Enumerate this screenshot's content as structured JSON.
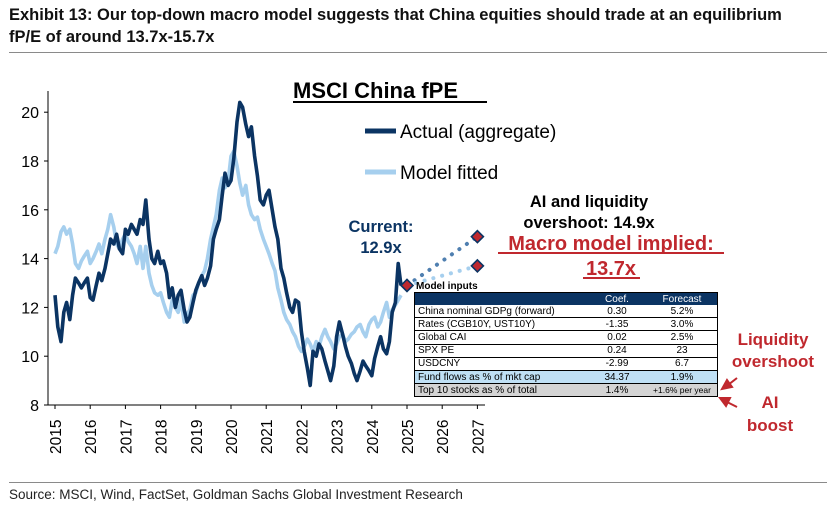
{
  "header": {
    "title": "Exhibit 13: Our top-down macro model suggests that China equities should trade at an equilibrium fP/E of around 13.7x-15.7x",
    "source": "Source: MSCI, Wind, FactSet, Goldman Sachs Global Investment Research"
  },
  "colors": {
    "actual": "#0b3463",
    "model": "#a6cfee",
    "red": "#c0282e",
    "navy": "#0b3463"
  },
  "chart_data": {
    "type": "line",
    "title": "MSCI China fPE",
    "xlabel": "",
    "ylabel": "",
    "ylim": [
      8,
      21
    ],
    "xlim": [
      2015,
      2027.5
    ],
    "yticks": [
      "8",
      "10",
      "12",
      "14",
      "16",
      "18",
      "20"
    ],
    "xticks": [
      "2015",
      "2016",
      "2017",
      "2018",
      "2019",
      "2020",
      "2021",
      "2022",
      "2023",
      "2024",
      "2025",
      "2026",
      "2027"
    ],
    "legend": [
      "Actual (aggregate)",
      "Model fitted"
    ],
    "series": [
      {
        "name": "Actual (aggregate)",
        "x": [
          2015.0,
          2015.08,
          2015.17,
          2015.25,
          2015.33,
          2015.42,
          2015.5,
          2015.58,
          2015.67,
          2015.75,
          2015.83,
          2015.92,
          2016.0,
          2016.08,
          2016.17,
          2016.25,
          2016.33,
          2016.42,
          2016.5,
          2016.58,
          2016.67,
          2016.75,
          2016.83,
          2016.92,
          2017.0,
          2017.08,
          2017.17,
          2017.25,
          2017.33,
          2017.42,
          2017.5,
          2017.58,
          2017.67,
          2017.75,
          2017.83,
          2017.92,
          2018.0,
          2018.08,
          2018.17,
          2018.25,
          2018.33,
          2018.42,
          2018.5,
          2018.58,
          2018.67,
          2018.75,
          2018.83,
          2018.92,
          2019.0,
          2019.08,
          2019.17,
          2019.25,
          2019.33,
          2019.42,
          2019.5,
          2019.58,
          2019.67,
          2019.75,
          2019.83,
          2019.92,
          2020.0,
          2020.08,
          2020.17,
          2020.25,
          2020.33,
          2020.42,
          2020.5,
          2020.58,
          2020.67,
          2020.75,
          2020.83,
          2020.92,
          2021.0,
          2021.08,
          2021.17,
          2021.25,
          2021.33,
          2021.42,
          2021.5,
          2021.58,
          2021.67,
          2021.75,
          2021.83,
          2021.92,
          2022.0,
          2022.08,
          2022.17,
          2022.25,
          2022.33,
          2022.42,
          2022.5,
          2022.58,
          2022.67,
          2022.75,
          2022.83,
          2022.92,
          2023.0,
          2023.08,
          2023.17,
          2023.25,
          2023.33,
          2023.42,
          2023.5,
          2023.58,
          2023.67,
          2023.75,
          2023.83,
          2023.92,
          2024.0,
          2024.08,
          2024.17,
          2024.25,
          2024.33,
          2024.42,
          2024.5,
          2024.58,
          2024.67,
          2024.75,
          2024.83
        ],
        "y": [
          12.5,
          11.2,
          10.6,
          11.8,
          12.2,
          11.5,
          12.5,
          13.2,
          13.0,
          12.8,
          13.0,
          13.2,
          12.4,
          12.3,
          12.9,
          13.4,
          13.1,
          13.6,
          14.2,
          14.8,
          14.6,
          15.0,
          14.4,
          14.2,
          15.2,
          15.0,
          15.4,
          15.2,
          15.0,
          15.6,
          15.4,
          16.4,
          14.8,
          14.0,
          13.8,
          14.3,
          13.8,
          13.9,
          13.4,
          12.4,
          12.8,
          12.0,
          12.5,
          12.7,
          11.9,
          11.4,
          11.6,
          12.2,
          12.7,
          13.0,
          13.3,
          12.9,
          13.2,
          13.7,
          14.8,
          15.2,
          15.6,
          16.6,
          17.5,
          17.0,
          17.2,
          18.1,
          19.6,
          20.4,
          20.2,
          19.5,
          19.0,
          19.4,
          18.2,
          17.4,
          16.4,
          16.2,
          16.6,
          16.8,
          16.0,
          15.3,
          14.8,
          13.6,
          13.2,
          12.6,
          12.0,
          11.8,
          12.3,
          12.2,
          11.0,
          10.2,
          9.5,
          8.8,
          10.2,
          10.0,
          10.5,
          10.3,
          9.8,
          9.4,
          9.0,
          9.6,
          10.8,
          11.4,
          10.9,
          10.4,
          10.0,
          9.7,
          9.3,
          9.0,
          9.4,
          9.8,
          9.6,
          9.4,
          9.2,
          9.9,
          10.4,
          10.8,
          10.3,
          10.1,
          10.6,
          11.8,
          12.2,
          13.8,
          12.9
        ]
      },
      {
        "name": "Model fitted",
        "x": [
          2015.0,
          2015.08,
          2015.17,
          2015.25,
          2015.33,
          2015.42,
          2015.5,
          2015.58,
          2015.67,
          2015.75,
          2015.83,
          2015.92,
          2016.0,
          2016.08,
          2016.17,
          2016.25,
          2016.33,
          2016.42,
          2016.5,
          2016.58,
          2016.67,
          2016.75,
          2016.83,
          2016.92,
          2017.0,
          2017.08,
          2017.17,
          2017.25,
          2017.33,
          2017.42,
          2017.5,
          2017.58,
          2017.67,
          2017.75,
          2017.83,
          2017.92,
          2018.0,
          2018.08,
          2018.17,
          2018.25,
          2018.33,
          2018.42,
          2018.5,
          2018.58,
          2018.67,
          2018.75,
          2018.83,
          2018.92,
          2019.0,
          2019.08,
          2019.17,
          2019.25,
          2019.33,
          2019.42,
          2019.5,
          2019.58,
          2019.67,
          2019.75,
          2019.83,
          2019.92,
          2020.0,
          2020.08,
          2020.17,
          2020.25,
          2020.33,
          2020.42,
          2020.5,
          2020.58,
          2020.67,
          2020.75,
          2020.83,
          2020.92,
          2021.0,
          2021.08,
          2021.17,
          2021.25,
          2021.33,
          2021.42,
          2021.5,
          2021.58,
          2021.67,
          2021.75,
          2021.83,
          2021.92,
          2022.0,
          2022.08,
          2022.17,
          2022.25,
          2022.33,
          2022.42,
          2022.5,
          2022.58,
          2022.67,
          2022.75,
          2022.83,
          2022.92,
          2023.0,
          2023.08,
          2023.17,
          2023.25,
          2023.33,
          2023.42,
          2023.5,
          2023.58,
          2023.67,
          2023.75,
          2023.83,
          2023.92,
          2024.0,
          2024.08,
          2024.17,
          2024.25,
          2024.33,
          2024.42,
          2024.5,
          2024.58,
          2024.67,
          2024.75,
          2024.83
        ],
        "y": [
          14.2,
          14.5,
          15.1,
          15.3,
          15.0,
          15.2,
          14.6,
          13.8,
          13.6,
          13.9,
          14.1,
          14.3,
          13.8,
          14.0,
          14.3,
          14.6,
          14.2,
          14.8,
          15.2,
          15.8,
          15.3,
          14.6,
          14.4,
          14.8,
          15.0,
          14.7,
          14.5,
          14.2,
          13.8,
          14.5,
          13.6,
          14.5,
          13.4,
          12.9,
          12.6,
          12.5,
          12.6,
          12.2,
          11.8,
          11.6,
          12.3,
          12.0,
          11.8,
          12.3,
          11.4,
          11.7,
          11.9,
          12.5,
          12.6,
          13.0,
          13.3,
          13.5,
          14.0,
          14.8,
          15.3,
          15.8,
          16.8,
          17.3,
          16.9,
          17.2,
          18.2,
          18.4,
          17.8,
          17.1,
          16.6,
          17.0,
          16.2,
          15.8,
          15.6,
          15.7,
          15.2,
          14.8,
          14.5,
          14.2,
          13.8,
          13.5,
          12.8,
          12.3,
          11.8,
          11.5,
          11.3,
          11.0,
          10.8,
          10.4,
          10.2,
          10.4,
          10.7,
          10.5,
          10.2,
          10.6,
          10.4,
          10.8,
          11.1,
          10.8,
          10.6,
          10.3,
          10.5,
          10.8,
          10.9,
          10.6,
          10.7,
          10.9,
          11.0,
          11.2,
          11.3,
          11.0,
          10.8,
          11.3,
          11.5,
          11.6,
          11.2,
          11.4,
          11.8,
          12.2,
          11.6,
          11.9,
          12.1,
          12.3,
          12.5
        ]
      }
    ],
    "projections": [
      {
        "name": "AI and liquidity overshoot",
        "x": [
          2025.0,
          2027.0
        ],
        "y": [
          12.9,
          14.9
        ]
      },
      {
        "name": "Macro model implied",
        "x": [
          2025.0,
          2027.0
        ],
        "y": [
          12.9,
          13.7
        ]
      }
    ],
    "markers": [
      {
        "label": "Current",
        "x": 2025.0,
        "y": 12.9
      },
      {
        "label": "AI overshoot",
        "x": 2027.0,
        "y": 14.9
      },
      {
        "label": "Macro implied",
        "x": 2027.0,
        "y": 13.7
      }
    ]
  },
  "annotations": {
    "current_label": "Current:",
    "current_value": "12.9x",
    "ai_line1": "AI and liquidity",
    "ai_line2": "overshoot: 14.9x",
    "macro_line1": "Macro model implied:",
    "macro_line2": "13.7x",
    "liquidity_line1": "Liquidity",
    "liquidity_line2": "overshoot",
    "ai_boost_line1": "AI",
    "ai_boost_line2": "boost"
  },
  "model_inputs": {
    "title": "Model inputs",
    "headers": [
      "",
      "Coef.",
      "Forecast"
    ],
    "rows": [
      {
        "name": "China nominal GDPg (forward)",
        "coef": "0.30",
        "forecast": "5.2%"
      },
      {
        "name": "Rates (CGB10Y, UST10Y)",
        "coef": "-1.35",
        "forecast": "3.0%"
      },
      {
        "name": "Global CAI",
        "coef": "0.02",
        "forecast": "2.5%"
      },
      {
        "name": "SPX PE",
        "coef": "0.24",
        "forecast": "23"
      },
      {
        "name": "USDCNY",
        "coef": "-2.99",
        "forecast": "6.7"
      },
      {
        "name": "Fund flows as % of mkt cap",
        "coef": "34.37",
        "forecast": "1.9%"
      },
      {
        "name": "Top 10 stocks as % of total",
        "coef": "1.4%",
        "forecast": "+1.6% per year"
      }
    ]
  }
}
